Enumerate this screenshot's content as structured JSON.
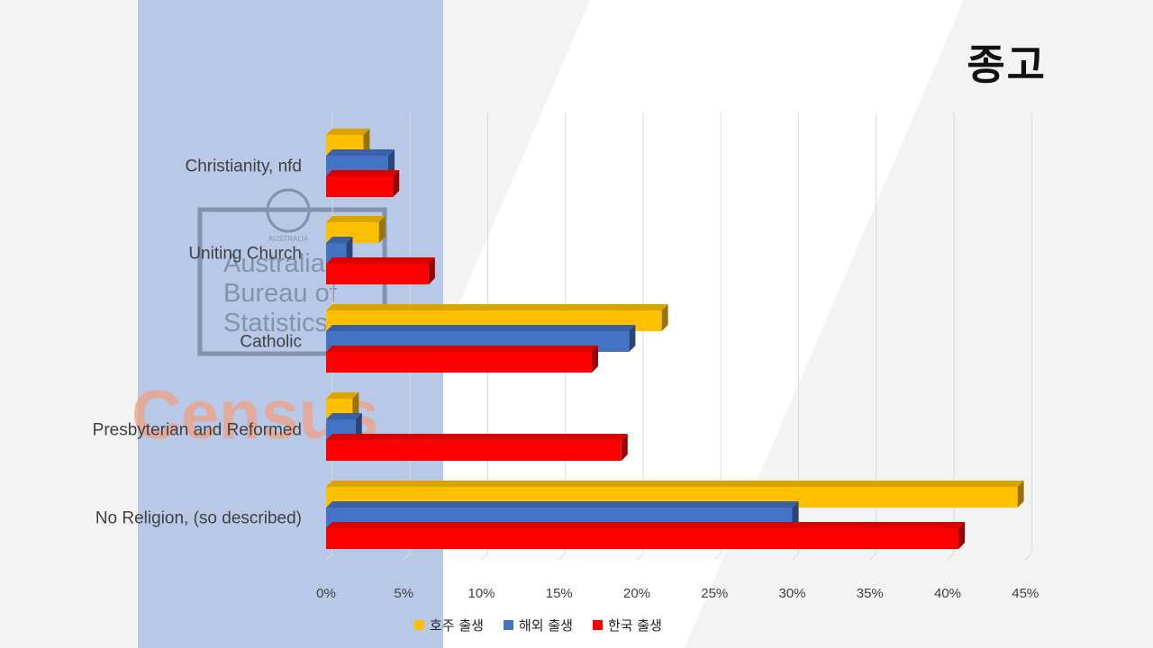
{
  "page": {
    "title": "종고",
    "background_logo": {
      "agency": [
        "Australian",
        "Bureau of",
        "Statistics"
      ],
      "word": "Census",
      "crest_text": "AUSTRALIA"
    }
  },
  "chart_data": {
    "type": "bar",
    "orientation": "horizontal",
    "style": "3d",
    "categories": [
      "Christianity, nfd",
      "Uniting Church",
      "Catholic",
      "Presbyterian and Reformed",
      "No Religion, (so described)"
    ],
    "series": [
      {
        "name": "호주 출생",
        "color": "#FFC000",
        "values": [
          2.4,
          3.4,
          21.6,
          1.7,
          44.5
        ]
      },
      {
        "name": "해외 출생",
        "color": "#4472C4",
        "values": [
          4.0,
          1.3,
          19.5,
          1.9,
          30.0
        ]
      },
      {
        "name": "한국 출생",
        "color": "#FF0000",
        "values": [
          4.3,
          6.6,
          17.1,
          19.0,
          40.7
        ]
      }
    ],
    "xlim": [
      0,
      45
    ],
    "xticks": [
      "0%",
      "5%",
      "10%",
      "15%",
      "20%",
      "25%",
      "30%",
      "35%",
      "40%",
      "45%"
    ],
    "grid": true,
    "legend_position": "bottom"
  }
}
